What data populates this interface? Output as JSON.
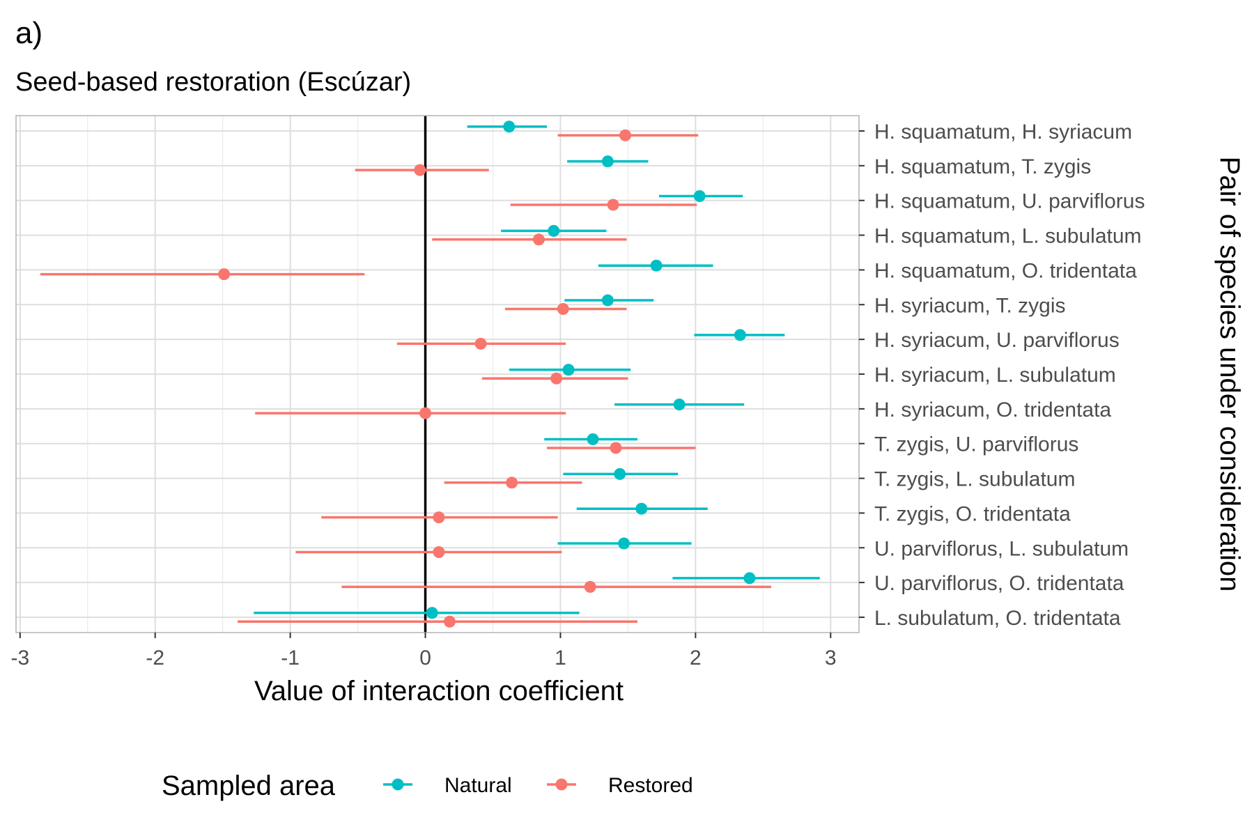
{
  "chart_data": {
    "type": "scatter",
    "panel_label": "a)",
    "title": "Seed-based restoration (Escúzar)",
    "xlabel": "Value of interaction coefficient",
    "ylabel": "Pair of species under consideration",
    "xlim": [
      -3.03,
      3.21
    ],
    "x_ticks": [
      "-3",
      "-2",
      "-1",
      "0",
      "1",
      "2",
      "3"
    ],
    "x_tick_values": [
      -3,
      -2,
      -1,
      0,
      1,
      2,
      3
    ],
    "reference_line": 0,
    "grid": true,
    "legend": {
      "title": "Sampled area",
      "position": "bottom"
    },
    "categories": [
      "H. squamatum, H. syriacum",
      "H. squamatum, T. zygis",
      "H. squamatum, U. parviflorus",
      "H. squamatum, L. subulatum",
      "H. squamatum, O. tridentata",
      "H. syriacum, T. zygis",
      "H. syriacum, U. parviflorus",
      "H. syriacum, L. subulatum",
      "H. syriacum, O. tridentata",
      "T. zygis, U. parviflorus",
      "T. zygis, L. subulatum",
      "T. zygis, O. tridentata",
      "U. parviflorus, L. subulatum",
      "U. parviflorus, O. tridentata",
      "L. subulatum, O. tridentata"
    ],
    "series": [
      {
        "name": "Natural",
        "color": "#00BFC4",
        "estimate": [
          0.62,
          1.35,
          2.03,
          0.95,
          1.71,
          1.35,
          2.33,
          1.06,
          1.88,
          1.24,
          1.44,
          1.6,
          1.47,
          2.4,
          0.05
        ],
        "lower": [
          0.31,
          1.05,
          1.73,
          0.56,
          1.28,
          1.03,
          1.99,
          0.62,
          1.4,
          0.88,
          1.02,
          1.12,
          0.98,
          1.83,
          -1.27
        ],
        "upper": [
          0.9,
          1.65,
          2.35,
          1.34,
          2.13,
          1.69,
          2.66,
          1.52,
          2.36,
          1.57,
          1.87,
          2.09,
          1.97,
          2.92,
          1.14
        ]
      },
      {
        "name": "Restored",
        "color": "#F8766D",
        "estimate": [
          1.48,
          -0.04,
          1.39,
          0.84,
          -1.49,
          1.02,
          0.41,
          0.97,
          0.0,
          1.41,
          0.64,
          0.1,
          0.1,
          1.22,
          0.18
        ],
        "lower": [
          0.98,
          -0.52,
          0.63,
          0.05,
          -2.85,
          0.59,
          -0.21,
          0.42,
          -1.26,
          0.9,
          0.14,
          -0.77,
          -0.96,
          -0.62,
          -1.39
        ],
        "upper": [
          2.02,
          0.47,
          2.01,
          1.49,
          -0.45,
          1.49,
          1.04,
          1.5,
          1.04,
          2.0,
          1.16,
          0.98,
          1.01,
          2.56,
          1.57
        ]
      }
    ]
  }
}
